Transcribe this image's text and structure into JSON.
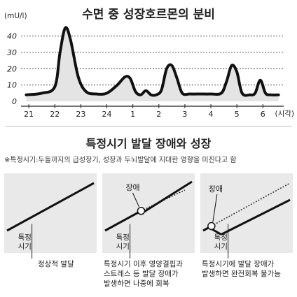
{
  "chart_data": [
    {
      "type": "line",
      "title": "수면 중 성장호르몬의 분비",
      "ylabel": "(mU/l)",
      "xlabel": "(시각)",
      "ylim": [
        0,
        45
      ],
      "yticks": [
        0,
        10,
        20,
        30,
        40
      ],
      "xticks": [
        "21",
        "22",
        "23",
        "24",
        "1",
        "2",
        "3",
        "4",
        "5",
        "6"
      ],
      "grid": true,
      "line_color": "#111111",
      "fill_color": "#e4e4e4",
      "x": [
        20.9,
        21.5,
        22.0,
        22.2,
        22.4,
        22.6,
        22.9,
        23.2,
        23.6,
        24.0,
        24.4,
        24.7,
        24.9,
        25.1,
        25.3,
        25.5,
        25.7,
        25.9,
        26.1,
        26.3,
        26.5,
        26.7,
        26.9,
        27.2,
        27.6,
        28.0,
        28.4,
        28.6,
        28.8,
        29.0,
        29.2,
        29.5,
        29.7,
        29.9,
        30.1,
        30.3,
        30.6
      ],
      "y": [
        4,
        5,
        9,
        30,
        45,
        38,
        15,
        6,
        4.5,
        5,
        10,
        15,
        14,
        6,
        4,
        6.5,
        4,
        4,
        7,
        20,
        22,
        14,
        5,
        4.5,
        4.5,
        4.5,
        5,
        12,
        22,
        18,
        5,
        4,
        5,
        13,
        5,
        4,
        4
      ]
    },
    {
      "type": "line",
      "title": "특정시기 발달 장애와 성장",
      "note": "※특정시기:두돌까지의 급성장기, 성장과 두뇌발달에 지대한 영향을 미친다고 함",
      "panels": [
        {
          "caption": "정상적 발달",
          "marker_label": "특정\n시기",
          "has_disorder": false
        },
        {
          "caption": "특정시기 이후 영양결핍과\n스트레스 등 발달 장애가\n발생하면 나중에 회복",
          "marker_label": "특정\n시기",
          "disorder_label": "장애",
          "has_disorder": true,
          "recovery": "full"
        },
        {
          "caption": "특정시기에 발달 장애가\n발생하면 완전회복 불가능",
          "marker_label": "특정\n시기",
          "disorder_label": "장애",
          "has_disorder": true,
          "recovery": "none"
        }
      ]
    }
  ]
}
